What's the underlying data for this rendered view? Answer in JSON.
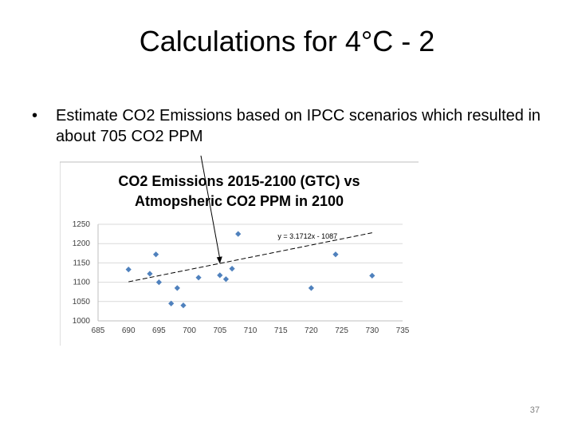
{
  "slide": {
    "title": "Calculations for 4°C - 2",
    "bullet": "Estimate CO2 Emissions based  on IPCC scenarios which resulted in about 705 CO2 PPM",
    "page_number": "37"
  },
  "chart_data": {
    "type": "scatter",
    "title_lines": [
      "CO2 Emissions 2015-2100 (GTC) vs",
      "Atmopsheric CO2 PPM in 2100"
    ],
    "xlabel": "",
    "ylabel": "",
    "xlim": [
      685,
      735
    ],
    "ylim": [
      1000,
      1250
    ],
    "x_ticks": [
      685,
      690,
      695,
      700,
      705,
      710,
      715,
      720,
      725,
      730,
      735
    ],
    "y_ticks": [
      1000,
      1050,
      1100,
      1150,
      1200,
      1250
    ],
    "grid": "horizontal",
    "marker_color": "#4f81bd",
    "series": [
      {
        "points": [
          {
            "x": 690,
            "y": 1133
          },
          {
            "x": 693.5,
            "y": 1122
          },
          {
            "x": 694.5,
            "y": 1172
          },
          {
            "x": 695,
            "y": 1100
          },
          {
            "x": 697,
            "y": 1045
          },
          {
            "x": 698,
            "y": 1085
          },
          {
            "x": 699,
            "y": 1040
          },
          {
            "x": 701.5,
            "y": 1112
          },
          {
            "x": 705,
            "y": 1118
          },
          {
            "x": 706,
            "y": 1108
          },
          {
            "x": 707,
            "y": 1135
          },
          {
            "x": 708,
            "y": 1225
          },
          {
            "x": 720,
            "y": 1085
          },
          {
            "x": 724,
            "y": 1172
          },
          {
            "x": 730,
            "y": 1117
          }
        ]
      }
    ],
    "trendline": {
      "slope": 3.1712,
      "intercept": -1087,
      "label": "y = 3.1712x - 1087"
    },
    "annotation_arrow": {
      "target_x": 705,
      "target_y": 1148
    }
  }
}
